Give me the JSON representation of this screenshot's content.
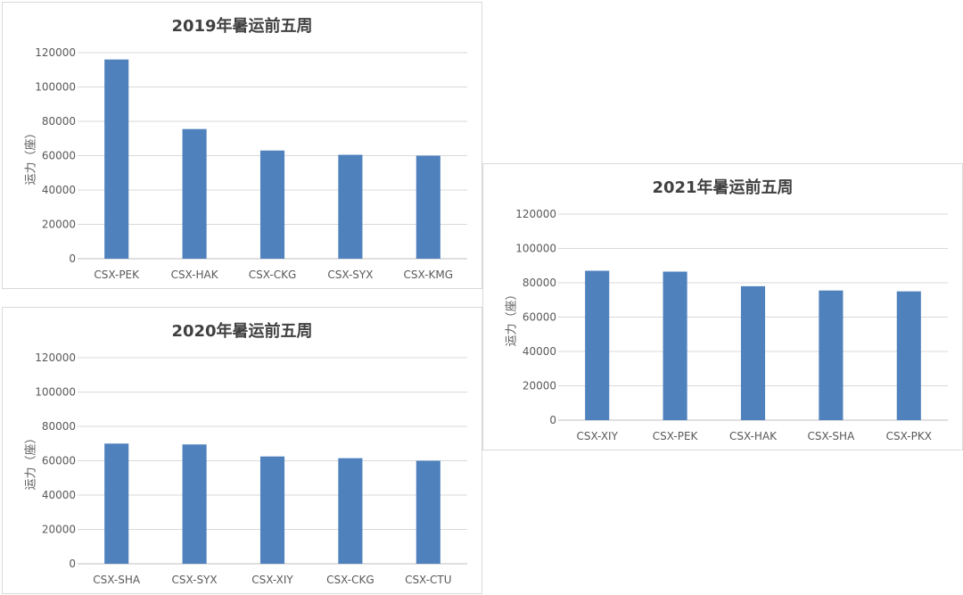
{
  "chart_data": [
    {
      "type": "bar",
      "title": "2019年暑运前五周",
      "ylabel": "运力（座）",
      "categories": [
        "CSX-PEK",
        "CSX-HAK",
        "CSX-CKG",
        "CSX-SYX",
        "CSX-KMG"
      ],
      "values": [
        116000,
        75500,
        63000,
        60500,
        60000
      ],
      "ylim": [
        0,
        120000
      ],
      "yticks": [
        "0",
        "20000",
        "40000",
        "60000",
        "80000",
        "100000",
        "120000"
      ],
      "grid": true,
      "legend": "none"
    },
    {
      "type": "bar",
      "title": "2020年暑运前五周",
      "ylabel": "运力（座）",
      "categories": [
        "CSX-SHA",
        "CSX-SYX",
        "CSX-XIY",
        "CSX-CKG",
        "CSX-CTU"
      ],
      "values": [
        70000,
        69500,
        62500,
        61500,
        60000
      ],
      "ylim": [
        0,
        120000
      ],
      "yticks": [
        "0",
        "20000",
        "40000",
        "60000",
        "80000",
        "100000",
        "120000"
      ],
      "grid": true,
      "legend": "none"
    },
    {
      "type": "bar",
      "title": "2021年暑运前五周",
      "ylabel": "运力（座）",
      "categories": [
        "CSX-XIY",
        "CSX-PEK",
        "CSX-HAK",
        "CSX-SHA",
        "CSX-PKX"
      ],
      "values": [
        87000,
        86500,
        78000,
        75500,
        75000
      ],
      "ylim": [
        0,
        120000
      ],
      "yticks": [
        "0",
        "20000",
        "40000",
        "60000",
        "80000",
        "100000",
        "120000"
      ],
      "grid": true,
      "legend": "none"
    }
  ],
  "style": {
    "bar_color": "#4f81bd",
    "grid_color": "#d9d9d9",
    "axis_color": "#bfbfbf",
    "text_color": "#595959"
  }
}
